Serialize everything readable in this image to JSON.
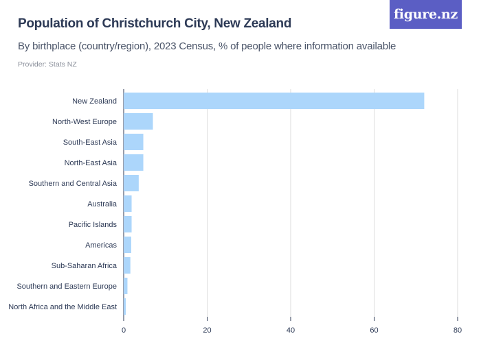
{
  "header": {
    "title": "Population of Christchurch City, New Zealand",
    "subtitle": "By birthplace (country/region), 2023 Census, % of people where information available",
    "provider": "Provider: Stats NZ",
    "logo_text": "figure.nz"
  },
  "colors": {
    "bar": "#acd6fb",
    "grid": "#dcdcdc",
    "axis": "#2d3a56",
    "logo_bg": "#5b5ec4"
  },
  "chart_data": {
    "type": "bar",
    "orientation": "horizontal",
    "title": "Population of Christchurch City, New Zealand",
    "subtitle": "By birthplace (country/region), 2023 Census, % of people where information available",
    "categories": [
      "New Zealand",
      "North-West Europe",
      "South-East Asia",
      "North-East Asia",
      "Southern and Central Asia",
      "Australia",
      "Pacific Islands",
      "Americas",
      "Sub-Saharan Africa",
      "Southern and Eastern Europe",
      "North Africa and the Middle East"
    ],
    "values": [
      72.0,
      7.0,
      4.7,
      4.7,
      3.6,
      1.9,
      1.9,
      1.8,
      1.6,
      0.9,
      0.5
    ],
    "xlim": [
      0,
      80
    ],
    "xticks": [
      0,
      20,
      40,
      60,
      80
    ],
    "xlabel": "",
    "ylabel": "",
    "grid": true,
    "legend": "none"
  }
}
